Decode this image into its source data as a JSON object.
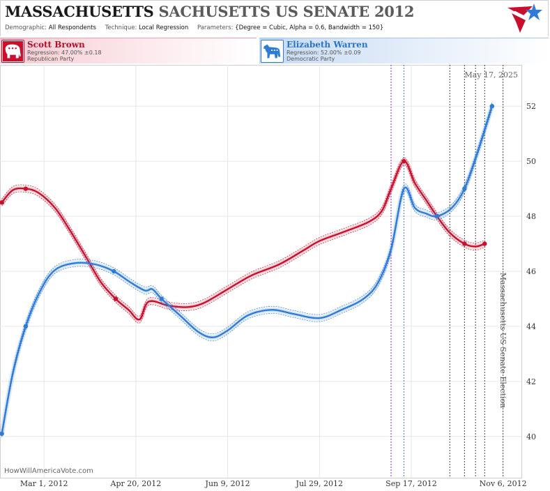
{
  "header": {
    "title_state": "MASSACHUSETTS",
    "title_race": "SACHUSETTS US SENATE 2012",
    "demographic_label": "Demographic:",
    "demographic_value": "All Respondents",
    "technique_label": "Technique:",
    "technique_value": "Local Regression",
    "parameters_label": "Parameters:",
    "parameters_value": "{Degree = Cubic, Alpha = 0.6, Bandwidth = 150}"
  },
  "candidates": [
    {
      "name": "Scott Brown",
      "regression": "Regression: 47.00% ±0.18",
      "party": "Republican Party",
      "color": "#c8102e"
    },
    {
      "name": "Elizabeth Warren",
      "regression": "Regression: 52.00% ±0.09",
      "party": "Democratic Party",
      "color": "#2f7bd8"
    }
  ],
  "watermark": "HowWillAmericaVote.com",
  "date_stamp": "May 17, 2025",
  "election_label": "Massachusetts US Senate Election",
  "chart_data": {
    "type": "line",
    "xlabel": "",
    "ylabel": "",
    "ylim": [
      38.5,
      53.5
    ],
    "xlim": [
      "2012-02-06",
      "2012-11-16"
    ],
    "yticks": [
      40,
      42,
      44,
      46,
      48,
      50,
      52
    ],
    "xticks": [
      {
        "date": "2012-03-01",
        "label": "Mar 1, 2012"
      },
      {
        "date": "2012-04-20",
        "label": "Apr 20, 2012"
      },
      {
        "date": "2012-06-09",
        "label": "Jun 9, 2012"
      },
      {
        "date": "2012-07-29",
        "label": "Jul 29, 2012"
      },
      {
        "date": "2012-09-17",
        "label": "Sep 17, 2012"
      },
      {
        "date": "2012-11-06",
        "label": "Nov 6, 2012"
      }
    ],
    "grid": true,
    "event_lines": [
      {
        "date": "2012-09-06",
        "color": "#8a2be2"
      },
      {
        "date": "2012-09-13",
        "color": "#2f7bd8"
      },
      {
        "date": "2012-10-08",
        "color": "#444444"
      },
      {
        "date": "2012-10-16",
        "color": "#444444"
      },
      {
        "date": "2012-10-22",
        "color": "#444444"
      },
      {
        "date": "2012-10-27",
        "color": "#444444"
      },
      {
        "date": "2012-11-06",
        "color": "#444444"
      }
    ],
    "series": [
      {
        "name": "Scott Brown",
        "color": "#c8102e",
        "points": [
          {
            "x": "2012-02-07",
            "y": 48.5
          },
          {
            "x": "2012-02-20",
            "y": 49.0
          },
          {
            "x": "2012-04-09",
            "y": 45.0
          },
          {
            "x": "2012-09-13",
            "y": 50.0
          },
          {
            "x": "2012-10-01",
            "y": 48.0
          },
          {
            "x": "2012-10-16",
            "y": 47.0
          },
          {
            "x": "2012-10-27",
            "y": 47.0
          }
        ],
        "curve": [
          {
            "x": "2012-02-07",
            "y": 48.5
          },
          {
            "x": "2012-02-13",
            "y": 48.95
          },
          {
            "x": "2012-02-20",
            "y": 49.0
          },
          {
            "x": "2012-02-27",
            "y": 48.85
          },
          {
            "x": "2012-03-07",
            "y": 48.3
          },
          {
            "x": "2012-03-15",
            "y": 47.5
          },
          {
            "x": "2012-03-24",
            "y": 46.5
          },
          {
            "x": "2012-04-01",
            "y": 45.6
          },
          {
            "x": "2012-04-09",
            "y": 45.0
          },
          {
            "x": "2012-04-16",
            "y": 44.6
          },
          {
            "x": "2012-04-22",
            "y": 44.25
          },
          {
            "x": "2012-04-27",
            "y": 44.9
          },
          {
            "x": "2012-05-08",
            "y": 44.75
          },
          {
            "x": "2012-05-18",
            "y": 44.7
          },
          {
            "x": "2012-05-27",
            "y": 44.85
          },
          {
            "x": "2012-06-09",
            "y": 45.35
          },
          {
            "x": "2012-06-22",
            "y": 45.85
          },
          {
            "x": "2012-07-07",
            "y": 46.25
          },
          {
            "x": "2012-07-20",
            "y": 46.75
          },
          {
            "x": "2012-07-29",
            "y": 47.1
          },
          {
            "x": "2012-08-12",
            "y": 47.45
          },
          {
            "x": "2012-08-25",
            "y": 47.8
          },
          {
            "x": "2012-09-01",
            "y": 48.2
          },
          {
            "x": "2012-09-06",
            "y": 49.0
          },
          {
            "x": "2012-09-13",
            "y": 50.0
          },
          {
            "x": "2012-09-19",
            "y": 49.2
          },
          {
            "x": "2012-09-25",
            "y": 48.6
          },
          {
            "x": "2012-10-01",
            "y": 48.0
          },
          {
            "x": "2012-10-08",
            "y": 47.4
          },
          {
            "x": "2012-10-16",
            "y": 47.0
          },
          {
            "x": "2012-10-22",
            "y": 46.9
          },
          {
            "x": "2012-10-27",
            "y": 47.0
          }
        ]
      },
      {
        "name": "Elizabeth Warren",
        "color": "#2f7bd8",
        "points": [
          {
            "x": "2012-02-07",
            "y": 40.1
          },
          {
            "x": "2012-02-20",
            "y": 44.0
          },
          {
            "x": "2012-04-08",
            "y": 46.0
          },
          {
            "x": "2012-05-04",
            "y": 45.0
          },
          {
            "x": "2012-10-01",
            "y": 48.0
          },
          {
            "x": "2012-10-16",
            "y": 49.0
          },
          {
            "x": "2012-10-31",
            "y": 52.0
          }
        ],
        "curve": [
          {
            "x": "2012-02-07",
            "y": 40.1
          },
          {
            "x": "2012-02-13",
            "y": 42.3
          },
          {
            "x": "2012-02-20",
            "y": 44.0
          },
          {
            "x": "2012-02-28",
            "y": 45.3
          },
          {
            "x": "2012-03-07",
            "y": 46.05
          },
          {
            "x": "2012-03-18",
            "y": 46.3
          },
          {
            "x": "2012-03-29",
            "y": 46.25
          },
          {
            "x": "2012-04-08",
            "y": 46.0
          },
          {
            "x": "2012-04-17",
            "y": 45.6
          },
          {
            "x": "2012-04-25",
            "y": 45.3
          },
          {
            "x": "2012-04-29",
            "y": 45.35
          },
          {
            "x": "2012-05-04",
            "y": 45.0
          },
          {
            "x": "2012-05-14",
            "y": 44.4
          },
          {
            "x": "2012-05-24",
            "y": 43.8
          },
          {
            "x": "2012-06-01",
            "y": 43.6
          },
          {
            "x": "2012-06-09",
            "y": 43.85
          },
          {
            "x": "2012-06-20",
            "y": 44.4
          },
          {
            "x": "2012-07-03",
            "y": 44.6
          },
          {
            "x": "2012-07-15",
            "y": 44.45
          },
          {
            "x": "2012-07-29",
            "y": 44.3
          },
          {
            "x": "2012-08-10",
            "y": 44.6
          },
          {
            "x": "2012-08-22",
            "y": 45.0
          },
          {
            "x": "2012-08-30",
            "y": 45.6
          },
          {
            "x": "2012-09-06",
            "y": 46.8
          },
          {
            "x": "2012-09-13",
            "y": 49.0
          },
          {
            "x": "2012-09-19",
            "y": 48.3
          },
          {
            "x": "2012-09-25",
            "y": 48.1
          },
          {
            "x": "2012-10-01",
            "y": 48.0
          },
          {
            "x": "2012-10-09",
            "y": 48.3
          },
          {
            "x": "2012-10-16",
            "y": 49.0
          },
          {
            "x": "2012-10-23",
            "y": 50.3
          },
          {
            "x": "2012-10-31",
            "y": 52.0
          }
        ]
      }
    ]
  }
}
